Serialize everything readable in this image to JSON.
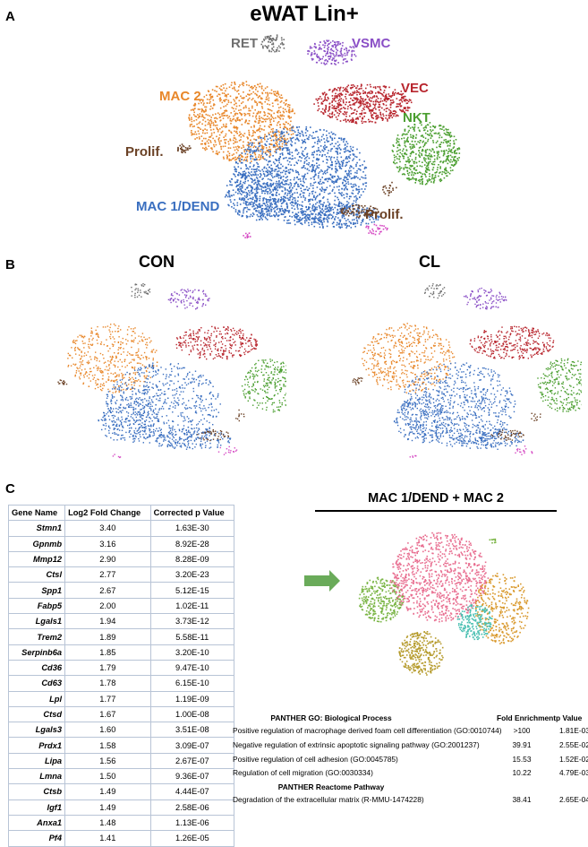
{
  "panels": {
    "A": {
      "letter": "A",
      "title": "eWAT Lin+",
      "labels": {
        "ret": "RET",
        "vsmc": "VSMC",
        "vec": "VEC",
        "mac2": "MAC 2",
        "nkt": "NKT",
        "prolif1": "Prolif.",
        "mac1": "MAC  1/DEND",
        "prolif2": "Prolif."
      }
    },
    "B": {
      "letter": "B",
      "con_title": "CON",
      "cl_title": "CL"
    },
    "C": {
      "letter": "C",
      "cluster_title": "MAC 1/DEND + MAC 2"
    }
  },
  "colors": {
    "ret": "#6f6f6f",
    "vsmc": "#8a4fc6",
    "vec": "#b8262e",
    "mac2": "#e8872a",
    "nkt": "#4a9e2f",
    "prolif": "#6b4226",
    "mac1": "#3a6fc0",
    "pink": "#d64bc4",
    "c_green": "#79b443",
    "c_pink": "#e86d8f",
    "c_orange": "#d9992d",
    "c_teal": "#4bc0b2",
    "c_olive": "#b59a2a",
    "arrow": "#6aab5a"
  },
  "gene_table": {
    "headers": [
      "Gene Name",
      "Log2 Fold Change",
      "Corrected p Value"
    ],
    "rows": [
      [
        "Stmn1",
        "3.40",
        "1.63E-30"
      ],
      [
        "Gpnmb",
        "3.16",
        "8.92E-28"
      ],
      [
        "Mmp12",
        "2.90",
        "8.28E-09"
      ],
      [
        "Ctsl",
        "2.77",
        "3.20E-23"
      ],
      [
        "Spp1",
        "2.67",
        "5.12E-15"
      ],
      [
        "Fabp5",
        "2.00",
        "1.02E-11"
      ],
      [
        "Lgals1",
        "1.94",
        "3.73E-12"
      ],
      [
        "Trem2",
        "1.89",
        "5.58E-11"
      ],
      [
        "Serpinb6a",
        "1.85",
        "3.20E-10"
      ],
      [
        "Cd36",
        "1.79",
        "9.47E-10"
      ],
      [
        "Cd63",
        "1.78",
        "6.15E-10"
      ],
      [
        "Lpl",
        "1.77",
        "1.19E-09"
      ],
      [
        "Ctsd",
        "1.67",
        "1.00E-08"
      ],
      [
        "Lgals3",
        "1.60",
        "3.51E-08"
      ],
      [
        "Prdx1",
        "1.58",
        "3.09E-07"
      ],
      [
        "Lipa",
        "1.56",
        "2.67E-07"
      ],
      [
        "Lmna",
        "1.50",
        "9.36E-07"
      ],
      [
        "Ctsb",
        "1.49",
        "4.44E-07"
      ],
      [
        "Igf1",
        "1.49",
        "2.58E-06"
      ],
      [
        "Anxa1",
        "1.48",
        "1.13E-06"
      ],
      [
        "Pf4",
        "1.41",
        "1.26E-05"
      ]
    ]
  },
  "pathway_table": {
    "go_header": "PANTHER GO: Biological Process",
    "fe_header": "Fold Enrichment",
    "p_header": "p Value",
    "go_rows": [
      [
        "Positive regulation of macrophage derived foam cell differentiation (GO:0010744)",
        ">100",
        "1.81E-03"
      ],
      [
        "Negative regulation of extrinsic apoptotic signaling pathway (GO:2001237)",
        "39.91",
        "2.55E-02"
      ],
      [
        "Positive regulation of cell adhesion (GO:0045785)",
        "15.53",
        "1.52E-02"
      ],
      [
        "Regulation of cell migration (GO:0030334)",
        "10.22",
        "4.79E-03"
      ]
    ],
    "reactome_header": "PANTHER Reactome Pathway",
    "reactome_rows": [
      [
        "Degradation of the extracellular matrix (R-MMU-1474228)",
        "38.41",
        "2.65E-04"
      ]
    ]
  }
}
